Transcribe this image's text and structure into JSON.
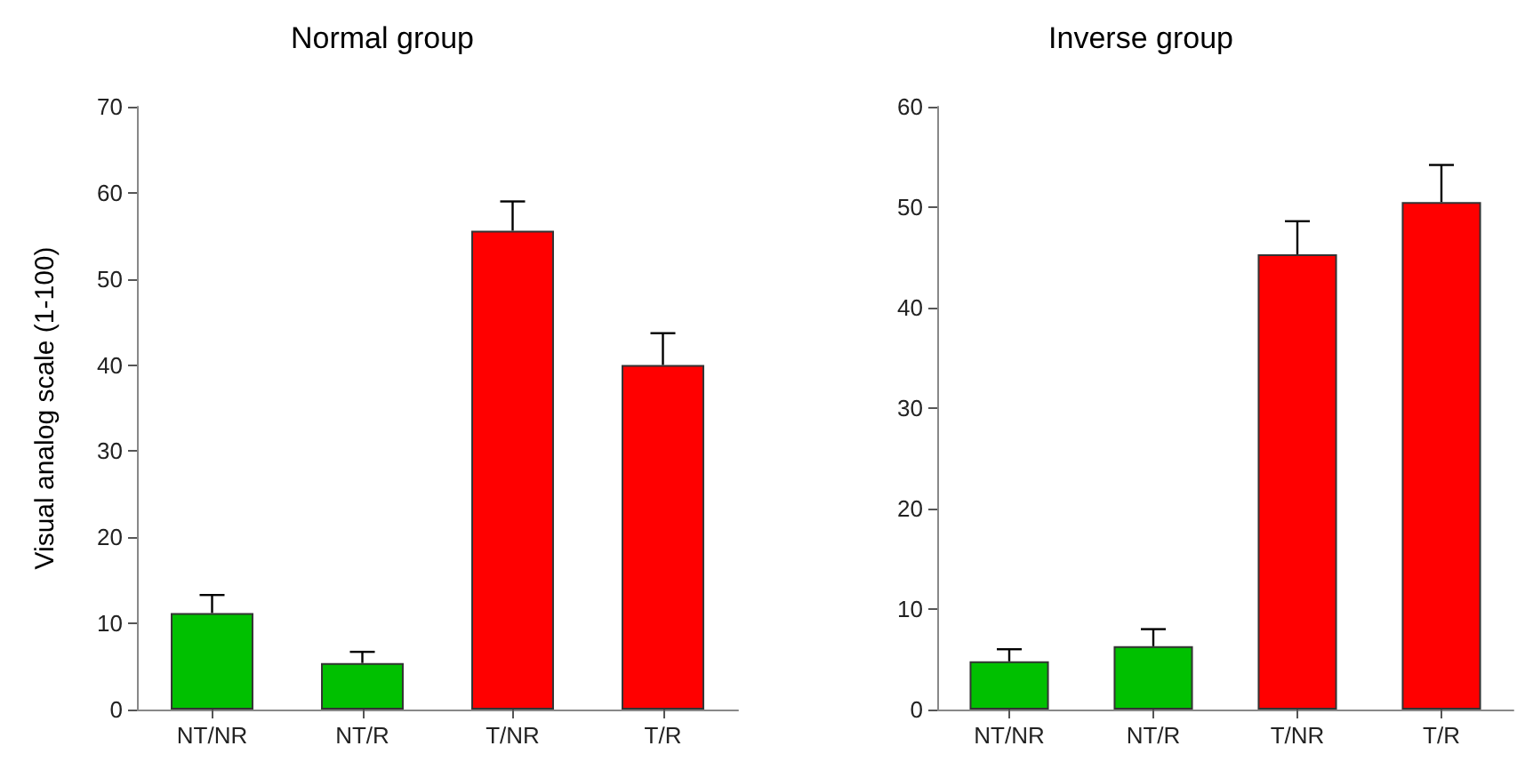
{
  "chart_data": [
    {
      "type": "bar",
      "title": "Normal group",
      "ylabel": "Visual analog scale (1-100)",
      "categories": [
        "NT/NR",
        "NT/R",
        "T/NR",
        "T/R"
      ],
      "values": [
        11.2,
        5.4,
        55.6,
        40.0
      ],
      "colors": [
        "#00c000",
        "#00c000",
        "#ff0000",
        "#ff0000"
      ],
      "errors": [
        [
          11.2,
          13.3
        ],
        [
          5.4,
          6.7
        ],
        [
          55.6,
          59.0
        ],
        [
          40.0,
          43.7
        ]
      ],
      "ylim": [
        0,
        70
      ],
      "yticks": [
        0,
        10,
        20,
        30,
        40,
        50,
        60,
        70
      ],
      "grid": false
    },
    {
      "type": "bar",
      "title": "Inverse group",
      "categories": [
        "NT/NR",
        "NT/R",
        "T/NR",
        "T/R"
      ],
      "values": [
        4.8,
        6.3,
        45.3,
        50.5
      ],
      "colors": [
        "#00c000",
        "#00c000",
        "#ff0000",
        "#ff0000"
      ],
      "errors": [
        [
          4.8,
          6.0
        ],
        [
          6.3,
          8.0
        ],
        [
          45.3,
          48.6
        ],
        [
          50.5,
          54.2
        ]
      ],
      "ylim": [
        0,
        60
      ],
      "yticks": [
        0,
        10,
        20,
        30,
        40,
        50,
        60
      ],
      "grid": false
    }
  ]
}
